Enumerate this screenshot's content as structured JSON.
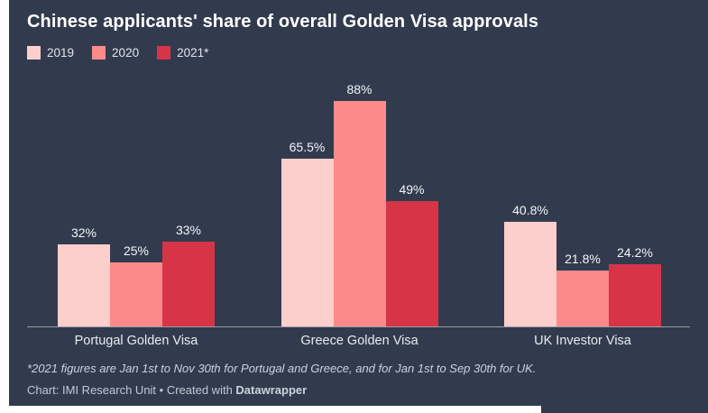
{
  "header": {
    "title": "Chinese applicants' share of overall Golden Visa approvals"
  },
  "legend": {
    "items": [
      {
        "label": "2019",
        "color": "#fdcfcc"
      },
      {
        "label": "2020",
        "color": "#fd8a8b"
      },
      {
        "label": "2021*",
        "color": "#d73448"
      }
    ]
  },
  "chart_data": {
    "type": "bar",
    "title": "Chinese applicants' share of overall Golden Visa approvals",
    "categories": [
      "Portugal Golden Visa",
      "Greece Golden Visa",
      "UK Investor Visa"
    ],
    "series": [
      {
        "name": "2019",
        "color": "#fdcfcc",
        "values": [
          32,
          65.5,
          40.8
        ],
        "labels": [
          "32%",
          "65.5%",
          "40.8%"
        ]
      },
      {
        "name": "2020",
        "color": "#fd8a8b",
        "values": [
          25,
          88,
          21.8
        ],
        "labels": [
          "25%",
          "88%",
          "21.8%"
        ]
      },
      {
        "name": "2021*",
        "color": "#d73448",
        "values": [
          33,
          49,
          24.2
        ],
        "labels": [
          "33%",
          "49%",
          "24.2%"
        ]
      }
    ],
    "value_suffix": "%",
    "ylim": [
      0,
      88
    ],
    "grid": false,
    "axis": "baseline-only",
    "legend_position": "top-left",
    "bar_labels": "above"
  },
  "footer": {
    "footnote": "*2021 figures are Jan 1st to Nov 30th for Portugal and Greece, and for Jan 1st to Sep 30th for UK.",
    "byline_prefix": "Chart: IMI Research Unit • Created with ",
    "byline_brand": "Datawrapper"
  },
  "colors": {
    "page_background": "#ffffff",
    "card_background": "#323b4e",
    "title_text": "#ffffff",
    "axis_line": "#8a93a4",
    "value_label_text": "#f3f5f8",
    "category_label_text": "#e8ebf0",
    "footnote_text": "#ccd2dc"
  }
}
